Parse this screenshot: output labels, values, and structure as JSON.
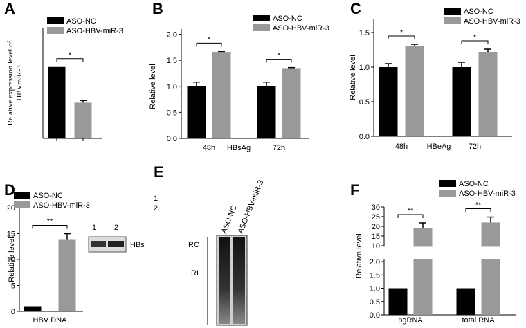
{
  "chart_data": [
    {
      "type": "bar",
      "label": "A",
      "ylabel": [
        "Relative expression level of",
        "HBVmiR-3"
      ],
      "series": [
        {
          "name": "ASO-NC",
          "color": "#000000",
          "values": [
            1.0
          ],
          "errors": [
            0
          ]
        },
        {
          "name": "ASO-HBV-miR-3",
          "color": "#999999",
          "values": [
            0.5
          ],
          "errors": [
            0.03
          ]
        }
      ],
      "ylim": [
        0,
        1.55
      ],
      "significance": [
        "*"
      ]
    },
    {
      "type": "bar",
      "label": "B",
      "ylabel": "Relative level",
      "xlabel": "HBsAg",
      "categories": [
        "48h",
        "72h"
      ],
      "series": [
        {
          "name": "ASO-NC",
          "color": "#000000",
          "values": [
            1.0,
            1.0
          ],
          "errors": [
            0.08,
            0.08
          ]
        },
        {
          "name": "ASO-HBV-miR-3",
          "color": "#999999",
          "values": [
            1.66,
            1.35
          ],
          "errors": [
            0.01,
            0.01
          ]
        }
      ],
      "ylim": [
        0,
        2.1
      ],
      "yticks": [
        {
          "value": 0,
          "label": "0.0"
        },
        0.5,
        {
          "value": 1,
          "label": "1.0"
        },
        1.5,
        {
          "value": 2,
          "label": "2.0"
        }
      ],
      "significance": [
        "*",
        "*"
      ]
    },
    {
      "type": "bar",
      "label": "C",
      "ylabel": "Relative level",
      "xlabel": "HBeAg",
      "categories": [
        "48h",
        "72h"
      ],
      "series": [
        {
          "name": "ASO-NC",
          "color": "#000000",
          "values": [
            1.0,
            1.0
          ],
          "errors": [
            0.05,
            0.07
          ]
        },
        {
          "name": "ASO-HBV-miR-3",
          "color": "#999999",
          "values": [
            1.3,
            1.22
          ],
          "errors": [
            0.03,
            0.04
          ]
        }
      ],
      "ylim": [
        0,
        1.7
      ],
      "yticks": [
        {
          "value": 0,
          "label": "0.0"
        },
        0.5,
        {
          "value": 1,
          "label": "1.0"
        },
        1.5
      ],
      "significance": [
        "*",
        "*"
      ]
    },
    {
      "type": "bar",
      "label": "D",
      "ylabel": "Relative level",
      "categories": [
        "HBV DNA"
      ],
      "series": [
        {
          "name": "ASO-NC",
          "color": "#000000",
          "values": [
            1.0
          ],
          "errors": [
            0
          ]
        },
        {
          "name": "ASO-HBV-miR-3",
          "color": "#999999",
          "values": [
            13.8
          ],
          "errors": [
            1.2
          ]
        }
      ],
      "ylim": [
        0,
        20
      ],
      "yticks": [
        0,
        5,
        10,
        15,
        20
      ],
      "significance": [
        "**"
      ]
    },
    {
      "type": "bar",
      "label": "F",
      "ylabel": "Relative level",
      "categories": [
        "pgRNA",
        "total RNA"
      ],
      "series": [
        {
          "name": "ASO-NC",
          "color": "#000000",
          "values": [
            1.0,
            1.0
          ],
          "errors": [
            0,
            0
          ]
        },
        {
          "name": "ASO-HBV-miR-3",
          "color": "#999999",
          "values": [
            19,
            22
          ],
          "errors": [
            2.8,
            2.8
          ]
        }
      ],
      "ylim_segments": [
        [
          0,
          2.1
        ],
        [
          9.5,
          30
        ]
      ],
      "yticks": [
        {
          "value": 0,
          "label": "0.0"
        },
        0.5,
        {
          "value": 1,
          "label": "1.0"
        },
        1.5,
        {
          "value": 2,
          "label": "2.0"
        },
        10,
        15,
        20,
        25,
        30
      ],
      "significance": [
        "**",
        "**"
      ]
    }
  ],
  "blot_d": {
    "legend_numbers": [
      "1",
      "2"
    ],
    "lanes": [
      "1",
      "2"
    ],
    "band": "HBs"
  },
  "blot_e": {
    "label": "E",
    "lanes": [
      "ASO-NC",
      "ASO-HBV-miR-3"
    ],
    "bands": [
      "RC",
      "RI"
    ]
  }
}
